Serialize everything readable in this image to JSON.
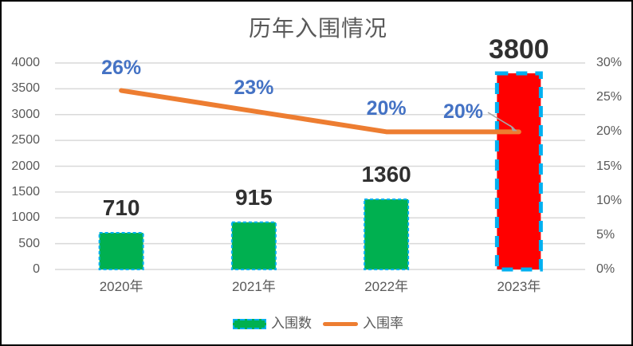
{
  "chart_data": {
    "type": "combo-bar-line",
    "title": "历年入围情况",
    "categories": [
      "2020年",
      "2021年",
      "2022年",
      "2023年"
    ],
    "series": [
      {
        "name": "入围数",
        "type": "bar",
        "values": [
          710,
          915,
          1360,
          3800
        ],
        "data_labels": [
          "710",
          "915",
          "1360",
          "3800"
        ],
        "point_colors": [
          "#00B050",
          "#00B050",
          "#00B050",
          "#FF0000"
        ],
        "outline_color": "#00B0F0",
        "outline_style": "dashed",
        "emphasized_point": 3
      },
      {
        "name": "入围率",
        "type": "line",
        "values_pct": [
          26,
          23,
          20,
          20
        ],
        "data_labels": [
          "26%",
          "23%",
          "20%",
          "20%"
        ],
        "line_color": "#ED7D31",
        "label_color": "#4472C4",
        "leader_line_color": "#A6A6A6"
      }
    ],
    "axes": {
      "left": {
        "min": 0,
        "max": 4000,
        "step": 500,
        "tick_labels": [
          "0",
          "500",
          "1000",
          "1500",
          "2000",
          "2500",
          "3000",
          "3500",
          "4000"
        ]
      },
      "right": {
        "min_pct": 0,
        "max_pct": 30,
        "step_pct": 5,
        "tick_labels": [
          "0%",
          "5%",
          "10%",
          "15%",
          "20%",
          "25%",
          "30%"
        ]
      }
    },
    "gridlines": {
      "visible": true,
      "color": "#D9D9D9"
    },
    "legend": {
      "position": "bottom",
      "entries": [
        "入围数",
        "入围率"
      ]
    },
    "value_label_color": "#303030",
    "title_color": "#595959"
  }
}
